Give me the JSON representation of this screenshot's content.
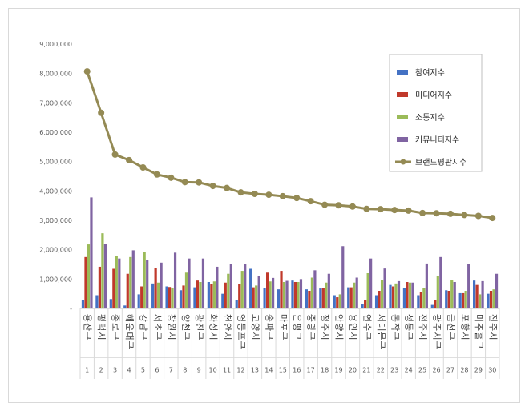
{
  "chart_data": {
    "type": "bar",
    "ylim": [
      0,
      9000000
    ],
    "ytick_step": 1000000,
    "yticks": [
      "-",
      "1,000,000",
      "2,000,000",
      "3,000,000",
      "4,000,000",
      "5,000,000",
      "6,000,000",
      "7,000,000",
      "8,000,000",
      "9,000,000"
    ],
    "categories": [
      "용산구",
      "평택시",
      "종로구",
      "해운대구",
      "강남구",
      "서초구",
      "창원시",
      "양천구",
      "광진구",
      "화성시",
      "천안시",
      "영등포구",
      "고양시",
      "송파구",
      "마포구",
      "은평구",
      "중랑구",
      "청주시",
      "안양시",
      "용인시",
      "연수구",
      "서대문구",
      "동작구",
      "성동구",
      "전주시",
      "광주 서구",
      "금천구",
      "포항시",
      "미추홀구",
      "진주시"
    ],
    "ranks": [
      "1",
      "2",
      "3",
      "4",
      "5",
      "6",
      "7",
      "8",
      "9",
      "10",
      "11",
      "12",
      "13",
      "14",
      "15",
      "16",
      "17",
      "18",
      "19",
      "20",
      "21",
      "22",
      "23",
      "24",
      "25",
      "26",
      "27",
      "28",
      "29",
      "30"
    ],
    "series": [
      {
        "name": "참여지수",
        "color": "#4472c4",
        "kind": "bar",
        "values": [
          300000,
          450000,
          320000,
          100000,
          480000,
          850000,
          750000,
          620000,
          720000,
          900000,
          500000,
          280000,
          1350000,
          700000,
          650000,
          950000,
          650000,
          680000,
          450000,
          720000,
          150000,
          450000,
          800000,
          700000,
          450000,
          120000,
          620000,
          520000,
          950000,
          500000
        ]
      },
      {
        "name": "미디어지수",
        "color": "#c0392b",
        "kind": "bar",
        "values": [
          1750000,
          1420000,
          1350000,
          1180000,
          750000,
          1380000,
          730000,
          780000,
          950000,
          830000,
          880000,
          820000,
          720000,
          1220000,
          1280000,
          900000,
          600000,
          700000,
          380000,
          720000,
          280000,
          600000,
          750000,
          900000,
          550000,
          280000,
          600000,
          520000,
          800000,
          600000
        ]
      },
      {
        "name": "소통지수",
        "color": "#9bbb59",
        "kind": "bar",
        "values": [
          2180000,
          2560000,
          1800000,
          1750000,
          1920000,
          880000,
          700000,
          1220000,
          900000,
          920000,
          1180000,
          1280000,
          780000,
          920000,
          900000,
          900000,
          1050000,
          880000,
          480000,
          880000,
          1200000,
          980000,
          850000,
          880000,
          700000,
          1100000,
          970000,
          600000,
          480000,
          650000
        ]
      },
      {
        "name": "커뮤니티지수",
        "color": "#8064a2",
        "kind": "bar",
        "values": [
          3780000,
          2200000,
          1700000,
          1980000,
          1650000,
          1560000,
          1900000,
          1700000,
          1700000,
          1420000,
          1500000,
          1520000,
          1100000,
          1040000,
          940000,
          1000000,
          1300000,
          1180000,
          2120000,
          1050000,
          1700000,
          1360000,
          930000,
          880000,
          1530000,
          1750000,
          900000,
          1500000,
          930000,
          1180000
        ]
      },
      {
        "name": "브랜드평판지수",
        "color": "#948a54",
        "kind": "line",
        "values": [
          8070000,
          6660000,
          5240000,
          5050000,
          4800000,
          4560000,
          4450000,
          4300000,
          4290000,
          4170000,
          4100000,
          3950000,
          3900000,
          3870000,
          3820000,
          3760000,
          3650000,
          3530000,
          3510000,
          3470000,
          3390000,
          3380000,
          3350000,
          3330000,
          3250000,
          3240000,
          3220000,
          3180000,
          3150000,
          3080000
        ]
      }
    ]
  }
}
